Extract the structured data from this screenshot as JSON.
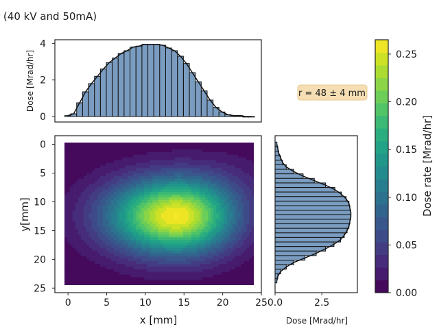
{
  "title": "r (40 kV and 50mA)",
  "colors": {
    "bar_fill": "#7a9cc0",
    "bar_edge": "#111111",
    "box_fill": "#f5deb3",
    "box_edge": "#e8c98f"
  },
  "top_hist": {
    "ylabel": "Dose [Mrad/hr]",
    "yticks": [
      "0",
      "2",
      "4"
    ]
  },
  "right_hist": {
    "xlabel": "Dose [Mrad/hr]",
    "xticks": [
      "0.0",
      "2.5"
    ]
  },
  "heatmap": {
    "xlabel": "x [mm]",
    "ylabel": "y[mm]",
    "xticks": [
      "0",
      "5",
      "10",
      "15",
      "20",
      "25"
    ],
    "yticks": [
      "0",
      "5",
      "10",
      "15",
      "20",
      "25"
    ]
  },
  "annotation": "r = 48 ± 4 mm",
  "colorbar": {
    "label": "Dose rate [Mrad/hr]",
    "ticks": [
      "0.00",
      "0.05",
      "0.10",
      "0.15",
      "0.20",
      "0.25"
    ],
    "vmin": 0.0,
    "vmax": 0.265,
    "colormap": "viridis"
  },
  "chart_data": [
    {
      "type": "bar",
      "title": "",
      "xlabel": "",
      "ylabel": "Dose [Mrad/hr]",
      "xlim": [
        -1.7,
        25.5
      ],
      "ylim": [
        -0.3,
        4.2
      ],
      "categories": [
        0,
        0.78,
        1.56,
        2.34,
        3.13,
        3.91,
        4.69,
        5.47,
        6.25,
        7.03,
        7.81,
        8.59,
        9.38,
        10.16,
        10.94,
        11.72,
        12.5,
        13.28,
        14.06,
        14.84,
        15.63,
        16.41,
        17.19,
        17.97,
        18.75,
        19.53,
        20.31,
        21.09,
        21.88,
        22.66,
        23.44,
        24.22
      ],
      "values": [
        0.05,
        0.15,
        0.75,
        1.35,
        1.8,
        2.2,
        2.6,
        2.95,
        3.2,
        3.45,
        3.6,
        3.8,
        3.85,
        3.95,
        3.95,
        3.95,
        3.9,
        3.75,
        3.6,
        3.3,
        2.9,
        2.4,
        1.9,
        1.4,
        0.9,
        0.5,
        0.25,
        0.1,
        0.05,
        0.05,
        0.0,
        0.0
      ]
    },
    {
      "type": "bar",
      "orientation": "horizontal",
      "title": "",
      "xlabel": "Dose [Mrad/hr]",
      "xlim": [
        0,
        4.4
      ],
      "ylim": [
        25.8,
        -1.5
      ],
      "categories": [
        0,
        0.79,
        1.58,
        2.37,
        3.16,
        3.95,
        4.74,
        5.53,
        6.32,
        7.11,
        7.9,
        8.69,
        9.48,
        10.27,
        11.06,
        11.85,
        12.64,
        13.43,
        14.22,
        15.01,
        15.8,
        16.59,
        17.38,
        18.17,
        18.96,
        19.75,
        20.54,
        21.33,
        22.12,
        22.91,
        23.7
      ],
      "values": [
        0.1,
        0.15,
        0.2,
        0.3,
        0.4,
        0.6,
        1.0,
        1.5,
        2.1,
        2.7,
        3.2,
        3.55,
        3.8,
        3.95,
        4.0,
        4.05,
        4.05,
        4.0,
        3.95,
        3.85,
        3.7,
        3.5,
        3.15,
        2.7,
        2.2,
        1.6,
        1.0,
        0.6,
        0.3,
        0.15,
        0.1
      ]
    },
    {
      "type": "heatmap",
      "title": "",
      "xlabel": "x [mm]",
      "ylabel": "y[mm]",
      "xlim": [
        -1.7,
        25
      ],
      "ylim": [
        25.8,
        -1.5
      ],
      "extent": {
        "x": [
          -0.5,
          24.5
        ],
        "y": [
          -0.5,
          24.5
        ]
      },
      "peak": {
        "x": 14,
        "y": 12.5,
        "value": 0.265
      },
      "sigma": {
        "x_left": 6.2,
        "x_right": 5.2,
        "y": 4.6
      },
      "levels": 20
    }
  ]
}
